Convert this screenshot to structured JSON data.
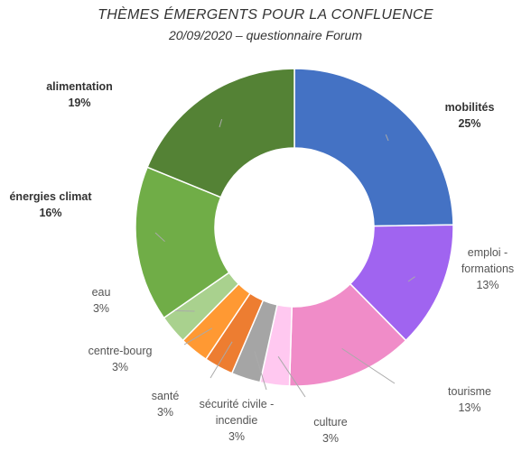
{
  "chart_data": {
    "type": "pie",
    "variant": "donut",
    "title": "THÈMES ÉMERGENTS POUR LA CONFLUENCE",
    "subtitle": "20/09/2020 – questionnaire Forum",
    "legend": "none",
    "slices": [
      {
        "label": "mobilités",
        "pct": "25%",
        "value": 25,
        "color": "#4472C4",
        "bold": true
      },
      {
        "label": "emploi - formations",
        "pct": "13%",
        "value": 13,
        "color": "#A064F0",
        "bold": false
      },
      {
        "label": "tourisme",
        "pct": "13%",
        "value": 13,
        "color": "#F08CC8",
        "bold": false
      },
      {
        "label": "culture",
        "pct": "3%",
        "value": 3,
        "color": "#FFC8F0",
        "bold": false
      },
      {
        "label": "sécurité civile - incendie",
        "pct": "3%",
        "value": 3,
        "color": "#A5A5A5",
        "bold": false
      },
      {
        "label": "santé",
        "pct": "3%",
        "value": 3,
        "color": "#ED7D31",
        "bold": false
      },
      {
        "label": "centre-bourg",
        "pct": "3%",
        "value": 3,
        "color": "#FF9933",
        "bold": false
      },
      {
        "label": "eau",
        "pct": "3%",
        "value": 3,
        "color": "#A9D18E",
        "bold": false
      },
      {
        "label": "énergies climat",
        "pct": "16%",
        "value": 16,
        "color": "#70AD47",
        "bold": true
      },
      {
        "label": "alimentation",
        "pct": "19%",
        "value": 19,
        "color": "#548235",
        "bold": true
      }
    ]
  }
}
